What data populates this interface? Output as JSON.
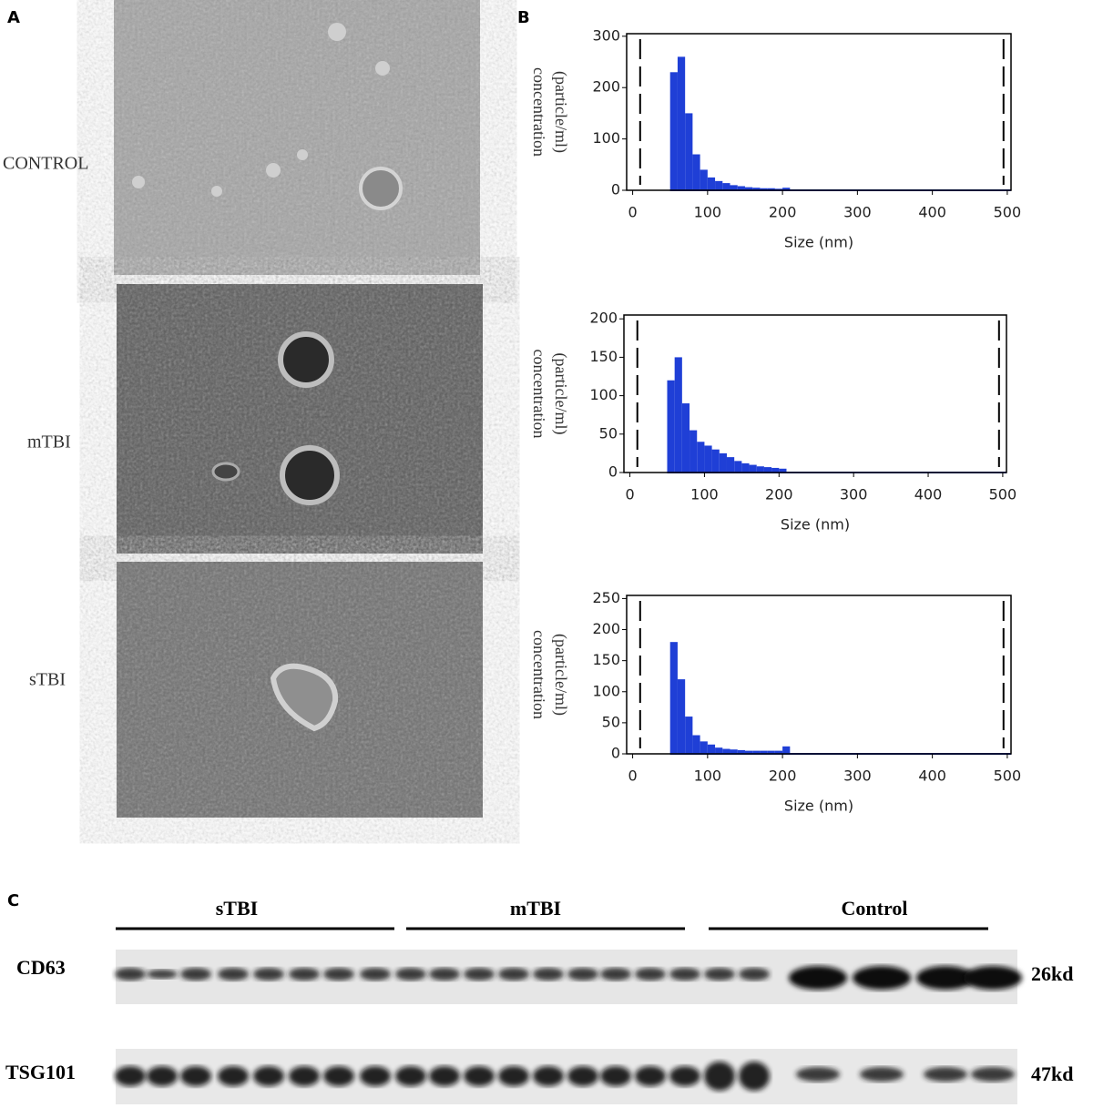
{
  "panels": {
    "a": "A",
    "b": "B",
    "c": "C"
  },
  "micrographs": {
    "labels": [
      "CONTROL",
      "mTBI",
      "sTBI"
    ]
  },
  "chart_data": [
    {
      "type": "histogram",
      "y_label": [
        "concentration",
        "(particle/ml)"
      ],
      "x_label": "Size (nm)",
      "color": "#1f3fd6",
      "bins": [
        50,
        60,
        70,
        80,
        90,
        100,
        110,
        120,
        130,
        140,
        150,
        160,
        170,
        180,
        190,
        200,
        210
      ],
      "values": [
        230,
        260,
        150,
        70,
        40,
        25,
        18,
        14,
        10,
        8,
        6,
        5,
        4,
        4,
        3,
        5
      ],
      "xlim": [
        -8,
        505
      ],
      "ylim": [
        0,
        305
      ],
      "xticks": [
        0,
        100,
        200,
        300,
        400,
        500
      ],
      "yticks": [
        0,
        100,
        200,
        300
      ],
      "vlines": [
        10,
        495
      ]
    },
    {
      "type": "histogram",
      "y_label": [
        "concentration",
        "(particle/ml)"
      ],
      "x_label": "Size (nm)",
      "color": "#1f3fd6",
      "bins": [
        50,
        60,
        70,
        80,
        90,
        100,
        110,
        120,
        130,
        140,
        150,
        160,
        170,
        180,
        190,
        200,
        210
      ],
      "values": [
        120,
        150,
        90,
        55,
        40,
        35,
        30,
        25,
        20,
        15,
        12,
        10,
        8,
        7,
        6,
        5
      ],
      "xlim": [
        -8,
        505
      ],
      "ylim": [
        0,
        205
      ],
      "xticks": [
        0,
        100,
        200,
        300,
        400,
        500
      ],
      "yticks": [
        0,
        50,
        100,
        150,
        200
      ],
      "vlines": [
        10,
        495
      ]
    },
    {
      "type": "histogram",
      "y_label": [
        "concentration",
        "(particle/ml)"
      ],
      "x_label": "Size (nm)",
      "color": "#1f3fd6",
      "bins": [
        50,
        60,
        70,
        80,
        90,
        100,
        110,
        120,
        130,
        140,
        150,
        160,
        170,
        180,
        190,
        200,
        210
      ],
      "values": [
        180,
        120,
        60,
        30,
        20,
        15,
        10,
        8,
        7,
        6,
        5,
        5,
        5,
        5,
        5,
        12
      ],
      "xlim": [
        -8,
        505
      ],
      "ylim": [
        0,
        255
      ],
      "xticks": [
        0,
        100,
        200,
        300,
        400,
        500
      ],
      "yticks": [
        0,
        50,
        100,
        150,
        200,
        250
      ],
      "vlines": [
        10,
        495
      ]
    }
  ],
  "blot": {
    "groups": [
      "sTBI",
      "mTBI",
      "Control"
    ],
    "rows": [
      {
        "name": "CD63",
        "size": "26kd"
      },
      {
        "name": "TSG101",
        "size": "47kd"
      }
    ]
  }
}
